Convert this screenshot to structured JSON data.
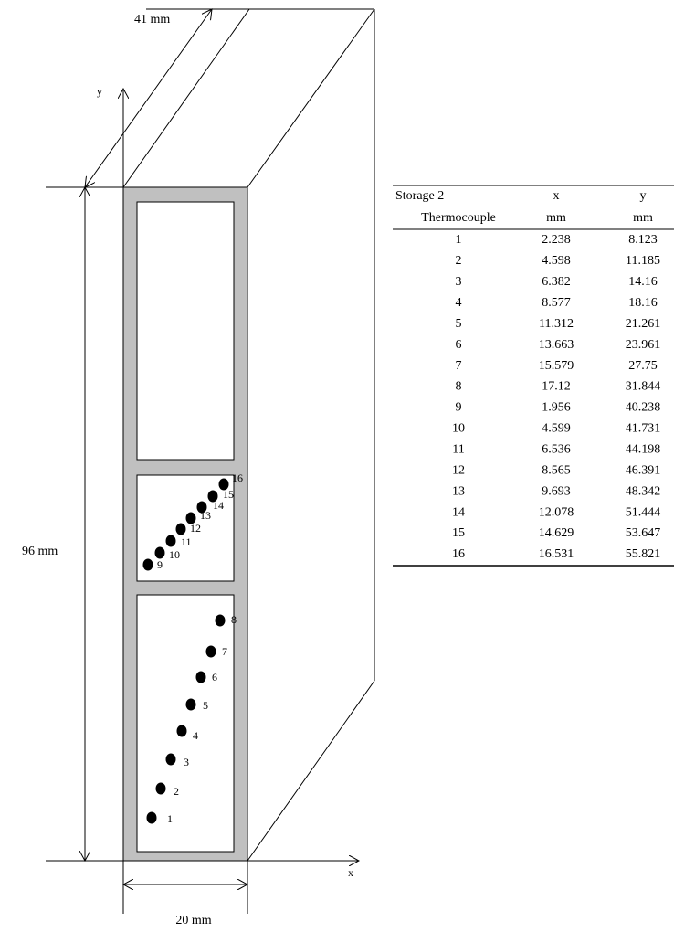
{
  "diagram": {
    "dimensions": {
      "depth": "41 mm",
      "height": "96 mm",
      "width": "20 mm"
    },
    "axes": {
      "y": "y",
      "x": "x"
    }
  },
  "table": {
    "header": [
      [
        "Storage 2",
        "x",
        "y"
      ],
      [
        "Thermocouple",
        "mm",
        "mm"
      ]
    ],
    "rows": [
      [
        "1",
        "2.238",
        "8.123"
      ],
      [
        "2",
        "4.598",
        "11.185"
      ],
      [
        "3",
        "6.382",
        "14.16"
      ],
      [
        "4",
        "8.577",
        "18.16"
      ],
      [
        "5",
        "11.312",
        "21.261"
      ],
      [
        "6",
        "13.663",
        "23.961"
      ],
      [
        "7",
        "15.579",
        "27.75"
      ],
      [
        "8",
        "17.12",
        "31.844"
      ],
      [
        "9",
        "1.956",
        "40.238"
      ],
      [
        "10",
        "4.599",
        "41.731"
      ],
      [
        "11",
        "6.536",
        "44.198"
      ],
      [
        "12",
        "8.565",
        "46.391"
      ],
      [
        "13",
        "9.693",
        "48.342"
      ],
      [
        "14",
        "12.078",
        "51.444"
      ],
      [
        "15",
        "14.629",
        "53.647"
      ],
      [
        "16",
        "16.531",
        "55.821"
      ]
    ]
  }
}
